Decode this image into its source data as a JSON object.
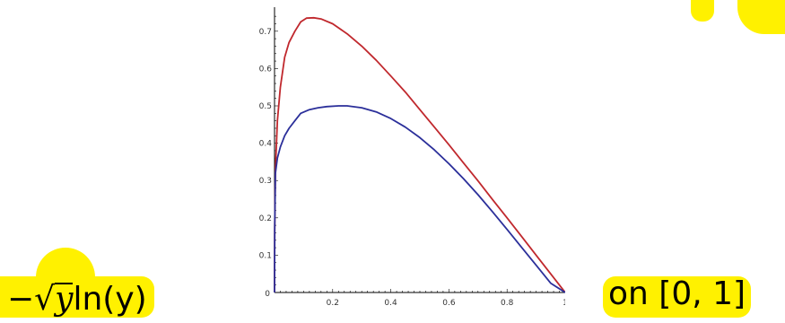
{
  "chart_data": {
    "type": "line",
    "title": "",
    "xlabel": "",
    "ylabel": "",
    "xlim": [
      0,
      1
    ],
    "ylim": [
      0,
      0.75
    ],
    "x_ticks": [
      "0.2",
      "0.4",
      "0.6",
      "0.8",
      "1"
    ],
    "y_ticks": [
      "0.1",
      "0.2",
      "0.3",
      "0.4",
      "0.5",
      "0.6",
      "0.7"
    ],
    "origin_label": "0",
    "grid": false,
    "series": [
      {
        "color": "#c0282d",
        "x": [
          0.0005,
          0.003,
          0.01,
          0.02,
          0.035,
          0.05,
          0.07,
          0.09,
          0.11,
          0.135,
          0.16,
          0.2,
          0.25,
          0.3,
          0.35,
          0.4,
          0.45,
          0.5,
          0.55,
          0.6,
          0.65,
          0.7,
          0.75,
          0.8,
          0.85,
          0.9,
          0.95,
          1.0
        ],
        "y": [
          0.17,
          0.33,
          0.46,
          0.55,
          0.63,
          0.67,
          0.7,
          0.725,
          0.735,
          0.736,
          0.733,
          0.72,
          0.693,
          0.66,
          0.622,
          0.58,
          0.537,
          0.49,
          0.443,
          0.396,
          0.347,
          0.299,
          0.249,
          0.2,
          0.15,
          0.1,
          0.05,
          0.0
        ]
      },
      {
        "color": "#2b2f9a",
        "x": [
          0.0005,
          0.003,
          0.01,
          0.02,
          0.035,
          0.05,
          0.07,
          0.09,
          0.12,
          0.15,
          0.18,
          0.22,
          0.25,
          0.3,
          0.35,
          0.4,
          0.45,
          0.5,
          0.55,
          0.6,
          0.65,
          0.7,
          0.75,
          0.8,
          0.85,
          0.9,
          0.95,
          1.0
        ],
        "y": [
          0.17,
          0.32,
          0.36,
          0.39,
          0.42,
          0.44,
          0.46,
          0.48,
          0.49,
          0.495,
          0.498,
          0.5,
          0.5,
          0.495,
          0.484,
          0.466,
          0.443,
          0.415,
          0.382,
          0.345,
          0.305,
          0.262,
          0.216,
          0.169,
          0.121,
          0.073,
          0.025,
          0.0
        ]
      }
    ]
  },
  "labels": {
    "formula_prefix": "−",
    "formula_sqrt_sign": "√",
    "formula_radicand": "y",
    "formula_rest": "ln(y)",
    "interval": "on  [0, 1]"
  }
}
